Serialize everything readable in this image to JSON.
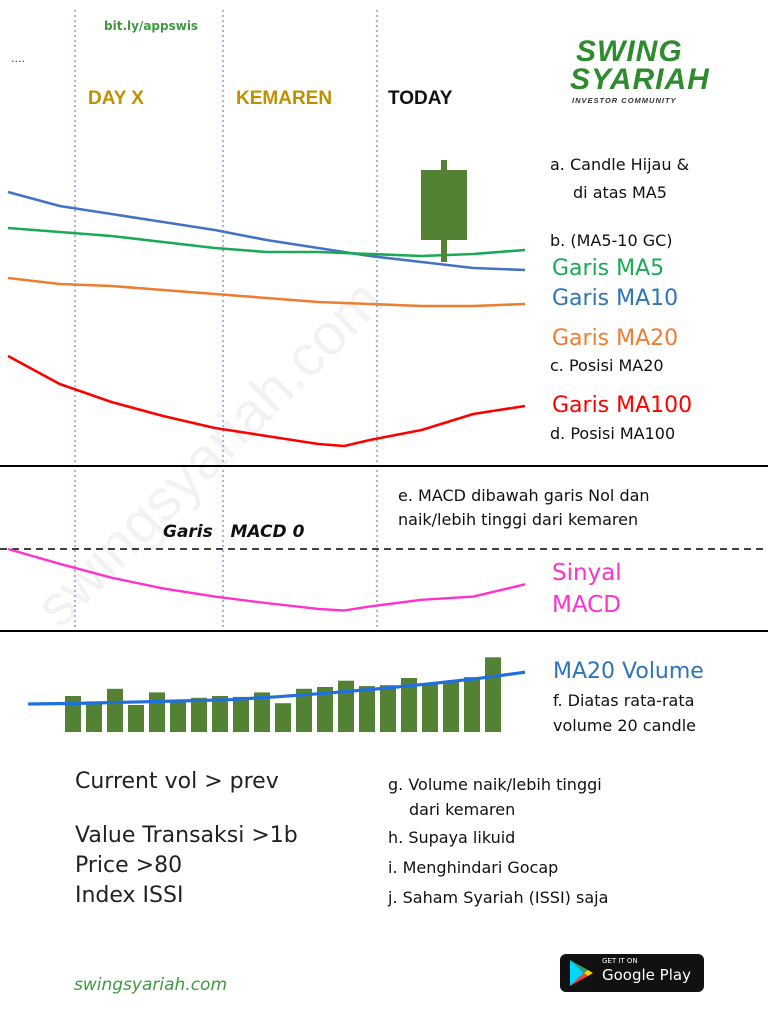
{
  "top": {
    "dots": "....",
    "short_link": "bit.ly/appswis"
  },
  "brand": {
    "line1": "SWING",
    "line2": "SYARIAH",
    "tagline": "INVESTOR COMMUNITY",
    "color": "#2e8b2e"
  },
  "columns": {
    "day_x": "DAY X",
    "kemaren": "KEMAREN",
    "today": "TODAY"
  },
  "notes": {
    "a1": "a.  Candle Hijau &",
    "a2": "di atas MA5",
    "b": "b. (MA5-10 GC)",
    "c": "c. Posisi MA20",
    "d": "d. Posisi MA100",
    "e1": "e. MACD dibawah garis Nol dan",
    "e2": "naik/lebih tinggi dari kemaren",
    "f1": "f.  Diatas rata-rata",
    "f2": "volume 20 candle",
    "g1": "g. Volume naik/lebih tinggi",
    "g2": "dari kemaren",
    "h": "h. Supaya likuid",
    "i": "i. Menghindari Gocap",
    "j": "j. Saham Syariah (ISSI) saja"
  },
  "legend": {
    "ma5": "Garis MA5",
    "ma10": "Garis MA10",
    "ma20": "Garis MA20",
    "ma100": "Garis MA100",
    "signal1": "Sinyal",
    "signal2": "MACD",
    "vol_ma": "MA20 Volume",
    "macd_zero": "Garis   MACD 0"
  },
  "criteria": {
    "c1": "Current vol > prev",
    "c2": "Value Transaksi >1b",
    "c3": "Price >80",
    "c4": "Index ISSI"
  },
  "footer": {
    "url": "swingsyariah.com",
    "store_small": "GET IT ON",
    "store_big": "Google Play"
  },
  "watermark": "swingsyariah.com",
  "chart_data": {
    "type": "line",
    "x_range": [
      0,
      100
    ],
    "price_panel": {
      "ylim": [
        0,
        100
      ],
      "series": [
        {
          "name": "Garis MA10",
          "color": "#4472c4",
          "x": [
            0,
            10,
            20,
            30,
            40,
            50,
            60,
            70,
            80,
            90,
            100
          ],
          "values": [
            84,
            77,
            73,
            69,
            65,
            60,
            56,
            52,
            49,
            46,
            45
          ]
        },
        {
          "name": "Garis MA5",
          "color": "#1aaa55",
          "x": [
            0,
            10,
            20,
            30,
            40,
            50,
            60,
            70,
            80,
            90,
            100
          ],
          "values": [
            66,
            64,
            62,
            59,
            56,
            54,
            54,
            53,
            52,
            53,
            55
          ]
        },
        {
          "name": "Garis MA20",
          "color": "#ed7d31",
          "x": [
            0,
            10,
            20,
            30,
            40,
            50,
            60,
            70,
            80,
            90,
            100
          ],
          "values": [
            41,
            38,
            37,
            35,
            33,
            31,
            29,
            28,
            27,
            27,
            28
          ]
        },
        {
          "name": "Garis MA100",
          "color": "#ff0000",
          "x": [
            0,
            10,
            20,
            30,
            40,
            50,
            60,
            65,
            70,
            80,
            90,
            100
          ],
          "values": [
            2,
            -12,
            -21,
            -28,
            -34,
            -38,
            -42,
            -43,
            -40,
            -35,
            -27,
            -23
          ]
        }
      ],
      "candle": {
        "color": "#548235",
        "open": 60,
        "close": 95,
        "low": 49,
        "high": 100
      }
    },
    "macd_panel": {
      "ylim": [
        -100,
        30
      ],
      "zero_line": 0,
      "series": [
        {
          "name": "Sinyal MACD",
          "color": "#ff33cc",
          "x": [
            0,
            10,
            20,
            30,
            40,
            50,
            60,
            65,
            70,
            80,
            90,
            100
          ],
          "values": [
            0,
            -18,
            -35,
            -48,
            -58,
            -66,
            -73,
            -75,
            -70,
            -62,
            -58,
            -43
          ]
        }
      ]
    },
    "volume_panel": {
      "ylim": [
        0,
        100
      ],
      "bar_color": "#548235",
      "bars": [
        40,
        34,
        48,
        30,
        44,
        34,
        38,
        40,
        39,
        44,
        32,
        48,
        50,
        57,
        51,
        52,
        60,
        53,
        57,
        61,
        83
      ],
      "ma20": {
        "name": "MA20 Volume",
        "color": "#1f6fde",
        "values": [
          0,
          1,
          3,
          5,
          7,
          12,
          18,
          25,
          33,
          42,
          53
        ]
      }
    }
  }
}
